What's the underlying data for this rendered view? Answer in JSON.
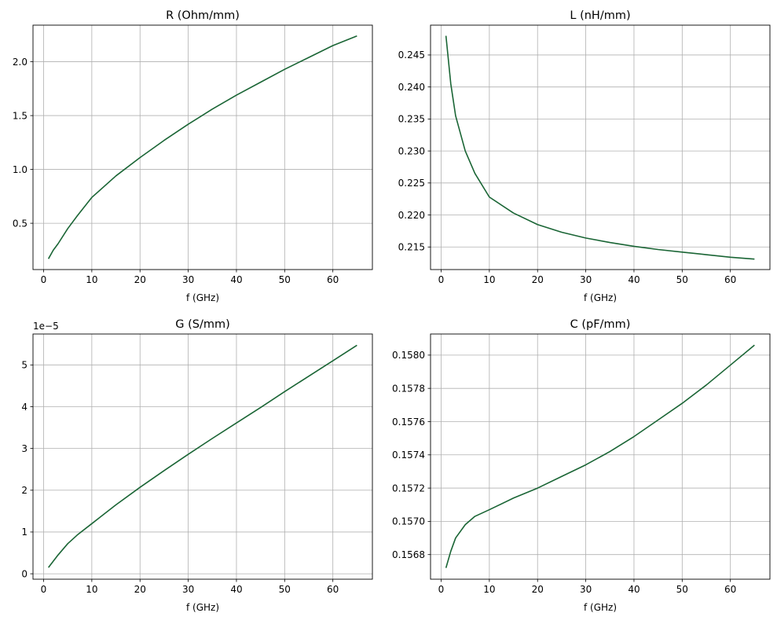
{
  "chart_data": [
    {
      "type": "line",
      "title": "R (Ohm/mm)",
      "xlabel": "f (GHz)",
      "ylabel": "",
      "xlim": [
        -2.2,
        68.2
      ],
      "ylim": [
        0.07,
        2.34
      ],
      "xticks": [
        0,
        10,
        20,
        30,
        40,
        50,
        60
      ],
      "yticks": [
        0.5,
        1.0,
        1.5,
        2.0
      ],
      "ytick_labels": [
        "0.5",
        "1.0",
        "1.5",
        "2.0"
      ],
      "offset_label": "",
      "grid": true,
      "color": "#1a6535",
      "x": [
        1,
        2,
        3,
        5,
        7,
        10,
        15,
        20,
        25,
        30,
        35,
        40,
        45,
        50,
        55,
        60,
        65
      ],
      "y": [
        0.17,
        0.25,
        0.31,
        0.45,
        0.57,
        0.74,
        0.94,
        1.11,
        1.27,
        1.42,
        1.56,
        1.69,
        1.81,
        1.93,
        2.04,
        2.15,
        2.24
      ]
    },
    {
      "type": "line",
      "title": "L (nH/mm)",
      "xlabel": "f (GHz)",
      "ylabel": "",
      "xlim": [
        -2.2,
        68.2
      ],
      "ylim": [
        0.21147,
        0.24966
      ],
      "xticks": [
        0,
        10,
        20,
        30,
        40,
        50,
        60
      ],
      "yticks": [
        0.215,
        0.22,
        0.225,
        0.23,
        0.235,
        0.24,
        0.245
      ],
      "ytick_labels": [
        "0.215",
        "0.220",
        "0.225",
        "0.230",
        "0.235",
        "0.240",
        "0.245"
      ],
      "offset_label": "",
      "grid": true,
      "color": "#1a6535",
      "x": [
        1,
        2,
        3,
        5,
        7,
        10,
        15,
        20,
        25,
        30,
        35,
        40,
        45,
        50,
        55,
        60,
        65
      ],
      "y": [
        0.248,
        0.2405,
        0.2355,
        0.23,
        0.2265,
        0.2228,
        0.2203,
        0.2185,
        0.2173,
        0.2164,
        0.2157,
        0.2151,
        0.2146,
        0.2142,
        0.2138,
        0.2134,
        0.2131
      ]
    },
    {
      "type": "line",
      "title": "G (S/mm)",
      "xlabel": "f (GHz)",
      "ylabel": "",
      "xlim": [
        -2.2,
        68.2
      ],
      "ylim": [
        -0.13,
        5.74
      ],
      "xticks": [
        0,
        10,
        20,
        30,
        40,
        50,
        60
      ],
      "yticks": [
        0,
        1,
        2,
        3,
        4,
        5
      ],
      "ytick_labels": [
        "0",
        "1",
        "2",
        "3",
        "4",
        "5"
      ],
      "offset_label": "1e−5",
      "grid": true,
      "color": "#1a6535",
      "x": [
        1,
        2,
        3,
        5,
        7,
        10,
        15,
        20,
        25,
        30,
        35,
        40,
        45,
        50,
        55,
        60,
        65
      ],
      "y": [
        0.15,
        0.3,
        0.45,
        0.72,
        0.93,
        1.2,
        1.65,
        2.07,
        2.47,
        2.86,
        3.24,
        3.61,
        3.98,
        4.36,
        4.73,
        5.1,
        5.47
      ]
    },
    {
      "type": "line",
      "title": "C (pF/mm)",
      "xlabel": "f (GHz)",
      "ylabel": "",
      "xlim": [
        -2.2,
        68.2
      ],
      "ylim": [
        0.156652,
        0.158127
      ],
      "xticks": [
        0,
        10,
        20,
        30,
        40,
        50,
        60
      ],
      "yticks": [
        0.1568,
        0.157,
        0.1572,
        0.1574,
        0.1576,
        0.1578,
        0.158
      ],
      "ytick_labels": [
        "0.1568",
        "0.1570",
        "0.1572",
        "0.1574",
        "0.1576",
        "0.1578",
        "0.1580"
      ],
      "offset_label": "",
      "grid": true,
      "color": "#1a6535",
      "x": [
        1,
        2,
        3,
        5,
        7,
        10,
        15,
        20,
        25,
        30,
        35,
        40,
        45,
        50,
        55,
        60,
        65
      ],
      "y": [
        0.15672,
        0.15682,
        0.1569,
        0.15698,
        0.15703,
        0.15707,
        0.15714,
        0.1572,
        0.15727,
        0.15734,
        0.15742,
        0.15751,
        0.15761,
        0.15771,
        0.15782,
        0.15794,
        0.15806
      ]
    }
  ]
}
